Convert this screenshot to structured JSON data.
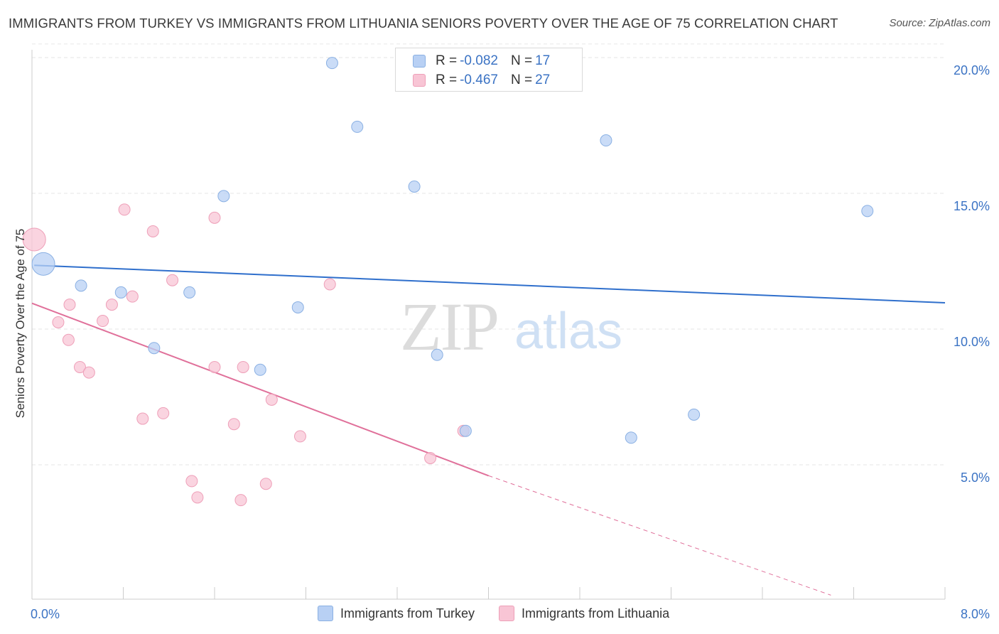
{
  "title": "IMMIGRANTS FROM TURKEY VS IMMIGRANTS FROM LITHUANIA SENIORS POVERTY OVER THE AGE OF 75 CORRELATION CHART",
  "source": "Source: ZipAtlas.com",
  "watermark": {
    "zip": "ZIP",
    "atlas": "atlas"
  },
  "colors": {
    "turkey_fill": "#b8d0f4",
    "turkey_stroke": "#8ab0e3",
    "turkey_line": "#2f6fcc",
    "lithuania_fill": "#f8c5d5",
    "lithuania_stroke": "#ee9fb8",
    "lithuania_line": "#e0709a",
    "tick_label": "#3b73c4",
    "grid": "#e6e6e6"
  },
  "legend": {
    "rows": [
      {
        "r_label": "R =",
        "r_value": "-0.082",
        "n_label": "N =",
        "n_value": "17"
      },
      {
        "r_label": "R =",
        "r_value": "-0.467",
        "n_label": "N =",
        "n_value": "27"
      }
    ]
  },
  "chart_data": {
    "type": "scatter",
    "title": "IMMIGRANTS FROM TURKEY VS IMMIGRANTS FROM LITHUANIA SENIORS POVERTY OVER THE AGE OF 75 CORRELATION CHART",
    "xlabel": "",
    "ylabel": "Seniors Poverty Over the Age of 75",
    "xlim": [
      0,
      8
    ],
    "ylim": [
      0,
      20.5
    ],
    "x_tick_labels": [
      {
        "value": 0,
        "label": "0.0%"
      },
      {
        "value": 8,
        "label": "8.0%"
      }
    ],
    "y_tick_labels": [
      {
        "value": 5,
        "label": "5.0%"
      },
      {
        "value": 10,
        "label": "10.0%"
      },
      {
        "value": 15,
        "label": "15.0%"
      },
      {
        "value": 20,
        "label": "20.0%"
      }
    ],
    "grid": true,
    "legend_position": "top-center",
    "series": [
      {
        "name": "Immigrants from Turkey",
        "points": [
          {
            "x": 0.1,
            "y": 12.4,
            "big": true
          },
          {
            "x": 0.43,
            "y": 11.6
          },
          {
            "x": 0.78,
            "y": 11.35
          },
          {
            "x": 1.38,
            "y": 11.35
          },
          {
            "x": 1.07,
            "y": 9.3
          },
          {
            "x": 1.68,
            "y": 14.9
          },
          {
            "x": 2.33,
            "y": 10.8
          },
          {
            "x": 2.0,
            "y": 8.5
          },
          {
            "x": 2.63,
            "y": 19.8
          },
          {
            "x": 2.85,
            "y": 17.45
          },
          {
            "x": 3.35,
            "y": 15.25
          },
          {
            "x": 3.55,
            "y": 9.05
          },
          {
            "x": 3.8,
            "y": 6.25
          },
          {
            "x": 5.03,
            "y": 16.95
          },
          {
            "x": 5.25,
            "y": 6.0
          },
          {
            "x": 5.8,
            "y": 6.85
          },
          {
            "x": 7.32,
            "y": 14.35
          }
        ],
        "trend": {
          "x0": 0.02,
          "y0": 12.35,
          "x1": 8.0,
          "y1": 10.97
        }
      },
      {
        "name": "Immigrants from Lithuania",
        "points": [
          {
            "x": 0.02,
            "y": 13.3,
            "big": true
          },
          {
            "x": 0.23,
            "y": 10.25
          },
          {
            "x": 0.33,
            "y": 10.9
          },
          {
            "x": 0.32,
            "y": 9.6
          },
          {
            "x": 0.42,
            "y": 8.6
          },
          {
            "x": 0.5,
            "y": 8.4
          },
          {
            "x": 0.62,
            "y": 10.3
          },
          {
            "x": 0.7,
            "y": 10.9
          },
          {
            "x": 0.81,
            "y": 14.4
          },
          {
            "x": 0.88,
            "y": 11.2
          },
          {
            "x": 0.97,
            "y": 6.7
          },
          {
            "x": 1.06,
            "y": 13.6
          },
          {
            "x": 1.15,
            "y": 6.9
          },
          {
            "x": 1.23,
            "y": 11.8
          },
          {
            "x": 1.4,
            "y": 4.4
          },
          {
            "x": 1.45,
            "y": 3.8
          },
          {
            "x": 1.6,
            "y": 14.1
          },
          {
            "x": 1.6,
            "y": 8.6
          },
          {
            "x": 1.77,
            "y": 6.5
          },
          {
            "x": 1.83,
            "y": 3.7
          },
          {
            "x": 1.85,
            "y": 8.6
          },
          {
            "x": 2.05,
            "y": 4.3
          },
          {
            "x": 2.1,
            "y": 7.4
          },
          {
            "x": 2.35,
            "y": 6.05
          },
          {
            "x": 2.61,
            "y": 11.65
          },
          {
            "x": 3.78,
            "y": 6.25
          },
          {
            "x": 3.49,
            "y": 5.25
          }
        ],
        "trend": {
          "x0": 0.0,
          "y0": 10.95,
          "x1": 4.0,
          "y1": 4.6,
          "dash_x1": 7.0,
          "dash_y1": 0.2
        }
      }
    ]
  },
  "bottom_legend": {
    "turkey": "Immigrants from Turkey",
    "lithuania": "Immigrants from Lithuania"
  }
}
